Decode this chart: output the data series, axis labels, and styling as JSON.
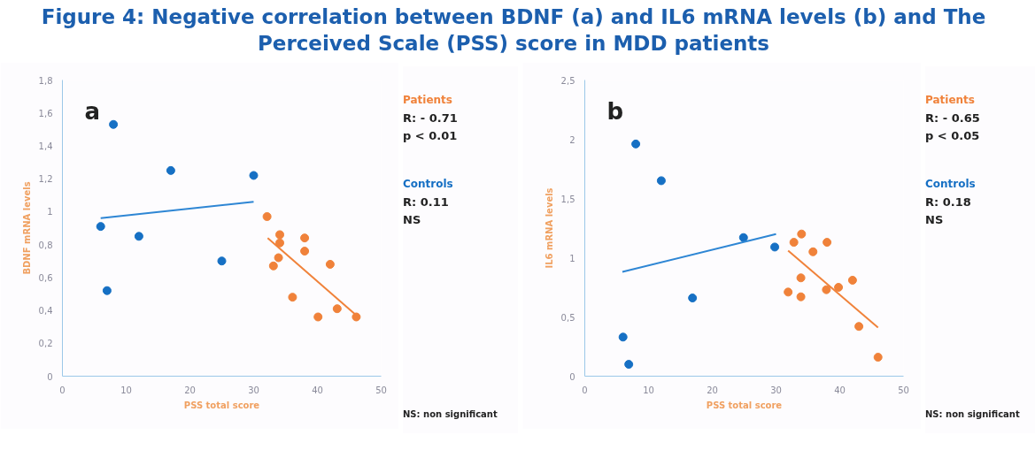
{
  "chart_data": [
    {
      "type": "scatter",
      "title": "Figure 4: Negative correlation between BDNF (a) and IL6 mRNA levels (b) and The Perceived Scale (PSS) score in MDD patients",
      "xlabel": "PSS total score",
      "ylabel": "BDNF mRNA levels",
      "marker": "circle",
      "grid": false,
      "xlim": [
        0,
        50
      ],
      "xticks": [
        0,
        10,
        20,
        30,
        40,
        50
      ],
      "ylim": [
        0,
        1.8
      ],
      "yticks": [
        0,
        {
          "value": 0.2,
          "label": "0,2"
        },
        {
          "value": 0.4,
          "label": "0,4"
        },
        {
          "value": 0.6,
          "label": "0,6"
        },
        {
          "value": 0.8,
          "label": "0,8"
        },
        1,
        {
          "value": 1.2,
          "label": "1,2"
        },
        {
          "value": 1.4,
          "label": "1,4"
        },
        {
          "value": 1.6,
          "label": "1,6"
        },
        {
          "value": 1.8,
          "label": "1,8"
        }
      ],
      "series": [
        {
          "name": "Patients",
          "color": "#f0823a",
          "x": [
            32.1,
            34.1,
            34.1,
            33.9,
            33.1,
            38,
            38,
            42,
            36.1,
            40.1,
            43.1,
            46.1
          ],
          "values": [
            0.97,
            0.86,
            0.81,
            0.72,
            0.67,
            0.84,
            0.76,
            0.68,
            0.48,
            0.36,
            0.41,
            0.36
          ]
        },
        {
          "name": "Controls",
          "color": "#1670c4",
          "x": [
            6,
            7,
            8,
            12,
            17,
            25,
            30
          ],
          "values": [
            0.91,
            0.52,
            1.53,
            0.85,
            1.25,
            0.7,
            1.22
          ]
        },
        {
          "type": "line",
          "marker": "none",
          "color": "#f0823a",
          "x": [
            32.2,
            46.4
          ],
          "values": [
            0.84,
            0.36
          ]
        },
        {
          "type": "line",
          "marker": "none",
          "color": "#2e86d4",
          "x": [
            6,
            30
          ],
          "values": [
            0.96,
            1.06
          ]
        }
      ],
      "annotations": [
        "a",
        "R: - 0.71",
        "p < 0.01",
        "R: 0.11",
        "NS",
        "NS: non significant"
      ]
    },
    {
      "type": "scatter",
      "xlabel": "PSS total score",
      "ylabel": "IL6 mRNA levels",
      "marker": "circle",
      "grid": false,
      "xlim": [
        0,
        50
      ],
      "xticks": [
        0,
        10,
        20,
        30,
        40,
        50
      ],
      "ylim": [
        0,
        2.5
      ],
      "yticks": [
        0,
        {
          "value": 0.5,
          "label": "0,5"
        },
        1,
        {
          "value": 1.5,
          "label": "1,5"
        },
        2,
        {
          "value": 2.5,
          "label": "2,5"
        }
      ],
      "series": [
        {
          "name": "Patients",
          "color": "#f0823a",
          "x": [
            32.8,
            34,
            35.8,
            38,
            33.9,
            31.9,
            33.9,
            37.9,
            39.8,
            42,
            43,
            46
          ],
          "values": [
            1.13,
            1.2,
            1.05,
            1.13,
            0.83,
            0.71,
            0.67,
            0.73,
            0.75,
            0.81,
            0.42,
            0.16
          ]
        },
        {
          "name": "Controls",
          "color": "#1670c4",
          "x": [
            8,
            12,
            16.9,
            24.9,
            29.8,
            6,
            6.9
          ],
          "values": [
            1.96,
            1.65,
            0.66,
            1.17,
            1.09,
            0.33,
            0.1
          ]
        },
        {
          "type": "line",
          "marker": "none",
          "color": "#f0823a",
          "x": [
            31.9,
            46
          ],
          "values": [
            1.06,
            0.41
          ]
        },
        {
          "type": "line",
          "marker": "none",
          "color": "#2e86d4",
          "x": [
            5.9,
            30
          ],
          "values": [
            0.88,
            1.2
          ]
        }
      ],
      "annotations": [
        "b",
        "R: - 0.65",
        "p < 0.05",
        "R: 0.18",
        "NS",
        "NS: non significant"
      ]
    }
  ]
}
